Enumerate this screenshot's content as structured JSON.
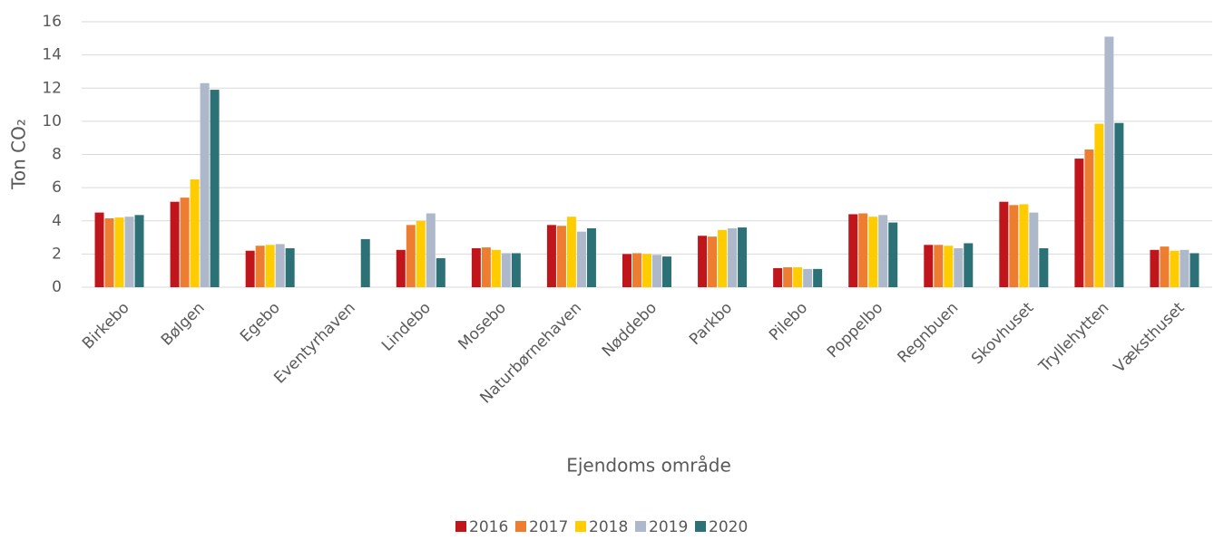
{
  "chart_data": {
    "type": "bar",
    "categories": [
      "Birkebo",
      "Bølgen",
      "Egebo",
      "Eventyrhaven",
      "Lindebo",
      "Mosebo",
      "Naturbørnehaven",
      "Nøddebo",
      "Parkbo",
      "Pilebo",
      "Poppelbo",
      "Regnbuen",
      "Skovhuset",
      "Tryllehytten",
      "Væksthuset"
    ],
    "series": [
      {
        "name": "2016",
        "color": "#c0161b",
        "values": [
          4.5,
          5.15,
          2.2,
          null,
          2.25,
          2.35,
          3.75,
          2.0,
          3.1,
          1.15,
          4.4,
          2.55,
          5.15,
          7.75,
          2.25
        ]
      },
      {
        "name": "2017",
        "color": "#ed7d31",
        "values": [
          4.15,
          5.4,
          2.5,
          null,
          3.75,
          2.4,
          3.7,
          2.05,
          3.05,
          1.2,
          4.45,
          2.55,
          4.95,
          8.3,
          2.45
        ]
      },
      {
        "name": "2018",
        "color": "#ffcc00",
        "values": [
          4.2,
          6.5,
          2.55,
          null,
          4.0,
          2.25,
          4.25,
          2.0,
          3.45,
          1.2,
          4.25,
          2.5,
          5.0,
          9.85,
          2.2
        ]
      },
      {
        "name": "2019",
        "color": "#adb9ca",
        "values": [
          4.25,
          12.3,
          2.6,
          null,
          4.45,
          2.05,
          3.35,
          1.95,
          3.55,
          1.1,
          4.35,
          2.35,
          4.5,
          15.1,
          2.25
        ]
      },
      {
        "name": "2020",
        "color": "#2b7176",
        "values": [
          4.35,
          11.9,
          2.35,
          2.9,
          1.75,
          2.05,
          3.55,
          1.85,
          3.6,
          1.1,
          3.9,
          2.65,
          2.35,
          9.9,
          2.05
        ]
      }
    ],
    "y_label": "Ton CO₂",
    "x_label": "Ejendoms område",
    "ylim": [
      0,
      16
    ],
    "yticks": [
      0,
      2,
      4,
      6,
      8,
      10,
      12,
      14,
      16
    ],
    "grid": true,
    "legend": "bottom"
  }
}
